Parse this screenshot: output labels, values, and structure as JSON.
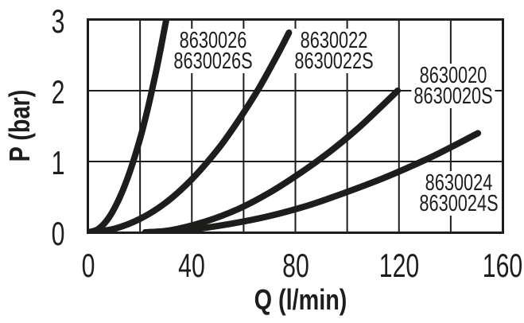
{
  "figure": {
    "background": "#ffffff",
    "ink_color": "#1d1d1b"
  },
  "chart_data": {
    "type": "line",
    "title": "",
    "xlabel": "Q (l/min)",
    "ylabel": "P (bar)",
    "xlim": [
      0,
      160
    ],
    "ylim": [
      0,
      3
    ],
    "x_ticks": [
      0,
      40,
      80,
      120,
      160
    ],
    "y_ticks": [
      3,
      2,
      1,
      0
    ],
    "x_grid_step": 20,
    "y_grid_step": 1,
    "grid": true,
    "legend_position": "inline-labels",
    "series": [
      {
        "name": "8630026",
        "label_lines": [
          "8630026",
          "8630026S"
        ],
        "label_anchor": {
          "q": 48.2,
          "p": 2.56
        },
        "points": [
          [
            0,
            0
          ],
          [
            4,
            0.05
          ],
          [
            8,
            0.21
          ],
          [
            12,
            0.48
          ],
          [
            16,
            0.85
          ],
          [
            20,
            1.32
          ],
          [
            23,
            1.75
          ],
          [
            26,
            2.24
          ],
          [
            28,
            2.6
          ],
          [
            30,
            2.98
          ],
          [
            31,
            3.18
          ]
        ]
      },
      {
        "name": "8630022",
        "label_lines": [
          "8630022",
          "8630022S"
        ],
        "label_anchor": {
          "q": 95,
          "p": 2.56
        },
        "points": [
          [
            0,
            0
          ],
          [
            10,
            0.05
          ],
          [
            20,
            0.19
          ],
          [
            30,
            0.42
          ],
          [
            40,
            0.75
          ],
          [
            50,
            1.17
          ],
          [
            58,
            1.58
          ],
          [
            65,
            1.98
          ],
          [
            70,
            2.3
          ],
          [
            74,
            2.57
          ],
          [
            77.5,
            2.82
          ]
        ]
      },
      {
        "name": "8630020",
        "label_lines": [
          "8630020",
          "8630020S"
        ],
        "label_anchor": {
          "q": 141,
          "p": 2.07
        },
        "points": [
          [
            22,
            0
          ],
          [
            32,
            0.03
          ],
          [
            45,
            0.15
          ],
          [
            58,
            0.33
          ],
          [
            70,
            0.56
          ],
          [
            82,
            0.84
          ],
          [
            93,
            1.13
          ],
          [
            103,
            1.43
          ],
          [
            111,
            1.7
          ],
          [
            119.5,
            2.0
          ]
        ]
      },
      {
        "name": "8630024",
        "label_lines": [
          "8630024",
          "8630024S"
        ],
        "label_anchor": {
          "q": 143,
          "p": 0.55
        },
        "points": [
          [
            23,
            0
          ],
          [
            40,
            0.04
          ],
          [
            55,
            0.12
          ],
          [
            70,
            0.23
          ],
          [
            85,
            0.38
          ],
          [
            100,
            0.57
          ],
          [
            115,
            0.78
          ],
          [
            130,
            1.02
          ],
          [
            140,
            1.2
          ],
          [
            150.5,
            1.4
          ]
        ]
      }
    ]
  }
}
